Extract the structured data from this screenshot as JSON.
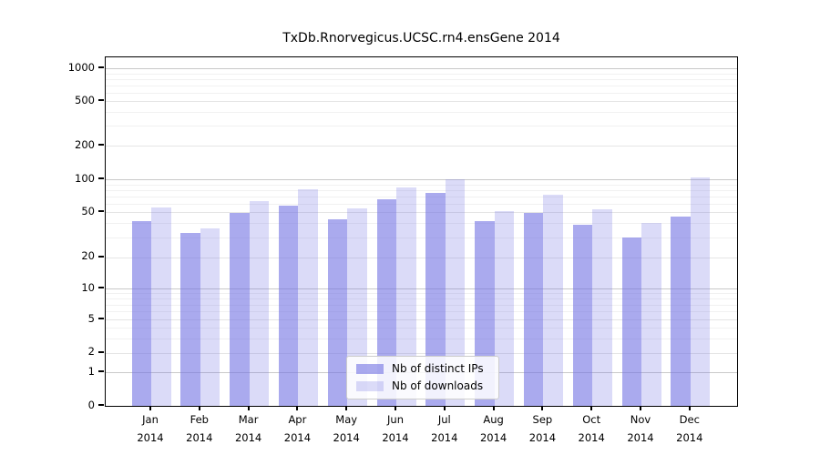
{
  "chart_data": {
    "type": "bar",
    "title": "TxDb.Rnorvegicus.UCSC.rn4.ensGene 2014",
    "categories": [
      "Jan",
      "Feb",
      "Mar",
      "Apr",
      "May",
      "Jun",
      "Jul",
      "Aug",
      "Sep",
      "Oct",
      "Nov",
      "Dec"
    ],
    "category_year": "2014",
    "series": [
      {
        "name": "Nb of distinct IPs",
        "color": "#7171e2",
        "alpha": 0.6,
        "values": [
          42,
          33,
          49,
          57,
          43,
          66,
          75,
          42,
          49,
          39,
          30,
          46
        ]
      },
      {
        "name": "Nb of downloads",
        "color": "#7171e2",
        "alpha": 0.25,
        "values": [
          55,
          36,
          63,
          81,
          54,
          84,
          101,
          51,
          72,
          53,
          40,
          104
        ]
      }
    ],
    "y_ticks": [
      0,
      1,
      2,
      5,
      10,
      20,
      50,
      100,
      200,
      500,
      1000
    ],
    "y_scale": "log-like with 0 baseline",
    "ylim": [
      0,
      1150
    ],
    "grid": true,
    "legend_position": "lower center",
    "grid_major_color": "#c9c9c9",
    "grid_minor_color": "#f1f1f1",
    "axis_color": "#000000"
  }
}
